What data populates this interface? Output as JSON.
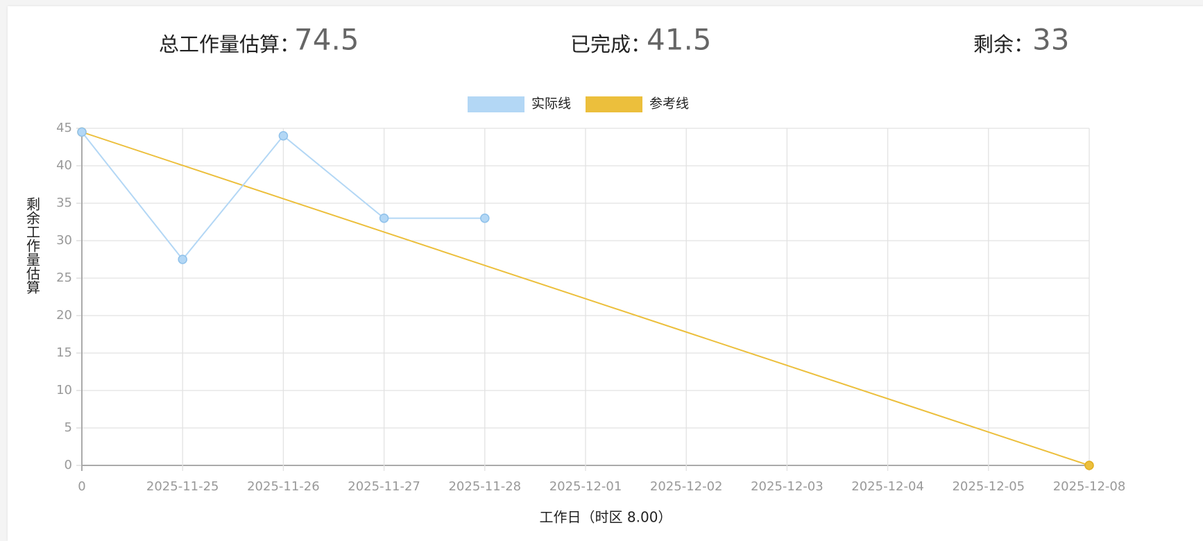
{
  "stats": [
    {
      "label": "总工作量估算：",
      "value": 74.5
    },
    {
      "label": "已完成：",
      "value": 41.5
    },
    {
      "label": "剩余：",
      "value": 33
    }
  ],
  "chart_data": {
    "type": "line",
    "categories": [
      "0",
      "2025-11-25",
      "2025-11-26",
      "2025-11-27",
      "2025-11-28",
      "2025-12-01",
      "2025-12-02",
      "2025-12-03",
      "2025-12-04",
      "2025-12-05",
      "2025-12-08"
    ],
    "series": [
      {
        "name": "实际线",
        "color": "#b3d7f5",
        "values": [
          44.5,
          27.5,
          44,
          33,
          33,
          null,
          null,
          null,
          null,
          null,
          null
        ]
      },
      {
        "name": "参考线",
        "color": "#ecbf3c",
        "values": [
          44.5,
          40.05,
          35.6,
          31.15,
          26.7,
          22.25,
          17.8,
          13.35,
          8.9,
          4.45,
          0
        ]
      }
    ],
    "ylim": [
      0,
      45
    ],
    "yticks": [
      0,
      5,
      10,
      15,
      20,
      25,
      30,
      35,
      40,
      45
    ],
    "grid": true,
    "ylabel": "剩余工作量估算",
    "xlabel": "工作日（时区 8.00）"
  }
}
